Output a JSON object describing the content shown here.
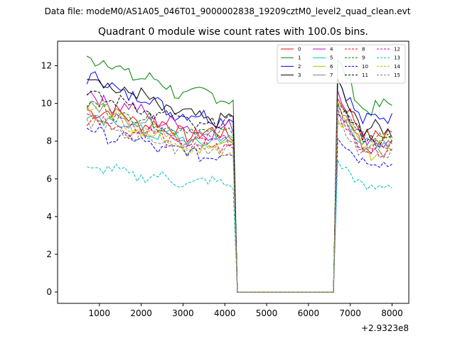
{
  "figure": {
    "supertitle": "Data file: modeM0/AS1A05_046T01_9000002838_19209cztM0_level2_quad_clean.evt"
  },
  "chart_data": {
    "type": "line",
    "title": "Quadrant 0 module wise count rates with 100.0s bins.",
    "xlabel": "",
    "ylabel": "",
    "x_offset_label": "+2.9323e8",
    "xlim": [
      0,
      8400
    ],
    "ylim": [
      -0.6,
      13.3
    ],
    "xticks": [
      1000,
      2000,
      3000,
      4000,
      5000,
      6000,
      7000,
      8000
    ],
    "xtick_labels": [
      "1000",
      "2000",
      "3000",
      "4000",
      "5000",
      "6000",
      "7000",
      "8000"
    ],
    "yticks": [
      0,
      2,
      4,
      6,
      8,
      10,
      12
    ],
    "ytick_labels": [
      "0",
      "2",
      "4",
      "6",
      "8",
      "10",
      "12"
    ],
    "legend_position": "top-right",
    "legend_columns": 4,
    "segments": {
      "seg1": [
        700,
        4200
      ],
      "drop_x": [
        4200,
        4300
      ],
      "gap": [
        4300,
        6600
      ],
      "rise_x": [
        6600,
        6700
      ],
      "seg2": [
        6700,
        8000
      ]
    },
    "series": [
      {
        "name": "0",
        "color": "#ff0000",
        "dashed": false,
        "levelA": 9.8,
        "endA": 8.4,
        "amp": 0.4,
        "peak": 10.3,
        "levelB": 8.4
      },
      {
        "name": "1",
        "color": "#008000",
        "dashed": false,
        "levelA": 12.5,
        "endA": 10.4,
        "amp": 0.4,
        "peak": 12.1,
        "levelB": 9.8
      },
      {
        "name": "2",
        "color": "#0000ff",
        "dashed": false,
        "levelA": 11.4,
        "endA": 9.3,
        "amp": 0.4,
        "peak": 11.1,
        "levelB": 9.2
      },
      {
        "name": "3",
        "color": "#000000",
        "dashed": false,
        "levelA": 11.5,
        "endA": 9.2,
        "amp": 0.4,
        "peak": 11.0,
        "levelB": 8.6
      },
      {
        "name": "4",
        "color": "#bf00bf",
        "dashed": false,
        "levelA": 10.5,
        "endA": 8.6,
        "amp": 0.4,
        "peak": 10.8,
        "levelB": 8.0
      },
      {
        "name": "5",
        "color": "#00bfbf",
        "dashed": false,
        "levelA": 9.3,
        "endA": 8.0,
        "amp": 0.35,
        "peak": 9.6,
        "levelB": 7.8
      },
      {
        "name": "6",
        "color": "#bfbf00",
        "dashed": false,
        "levelA": 9.7,
        "endA": 7.8,
        "amp": 0.4,
        "peak": 9.5,
        "levelB": 7.5
      },
      {
        "name": "7",
        "color": "#808080",
        "dashed": false,
        "levelA": 10.0,
        "endA": 8.2,
        "amp": 0.35,
        "peak": 9.8,
        "levelB": 7.8
      },
      {
        "name": "8",
        "color": "#ff0000",
        "dashed": true,
        "levelA": 9.2,
        "endA": 7.8,
        "amp": 0.35,
        "peak": 9.4,
        "levelB": 7.7
      },
      {
        "name": "9",
        "color": "#008000",
        "dashed": true,
        "levelA": 9.9,
        "endA": 8.5,
        "amp": 0.35,
        "peak": 10.2,
        "levelB": 8.2
      },
      {
        "name": "10",
        "color": "#0000ff",
        "dashed": true,
        "levelA": 8.6,
        "endA": 7.3,
        "amp": 0.35,
        "peak": 8.4,
        "levelB": 6.9
      },
      {
        "name": "11",
        "color": "#000000",
        "dashed": true,
        "levelA": 10.6,
        "endA": 8.9,
        "amp": 0.35,
        "peak": 10.3,
        "levelB": 8.1
      },
      {
        "name": "12",
        "color": "#bf00bf",
        "dashed": true,
        "levelA": 9.5,
        "endA": 8.0,
        "amp": 0.35,
        "peak": 9.6,
        "levelB": 7.5
      },
      {
        "name": "13",
        "color": "#00bfbf",
        "dashed": true,
        "levelA": 6.6,
        "endA": 5.8,
        "amp": 0.3,
        "peak": 6.8,
        "levelB": 5.6
      },
      {
        "name": "14",
        "color": "#bfbf00",
        "dashed": true,
        "levelA": 9.9,
        "endA": 7.6,
        "amp": 0.35,
        "peak": 9.9,
        "levelB": 7.9
      },
      {
        "name": "15",
        "color": "#808080",
        "dashed": true,
        "levelA": 8.9,
        "endA": 7.6,
        "amp": 0.35,
        "peak": 9.1,
        "levelB": 7.4
      }
    ]
  }
}
